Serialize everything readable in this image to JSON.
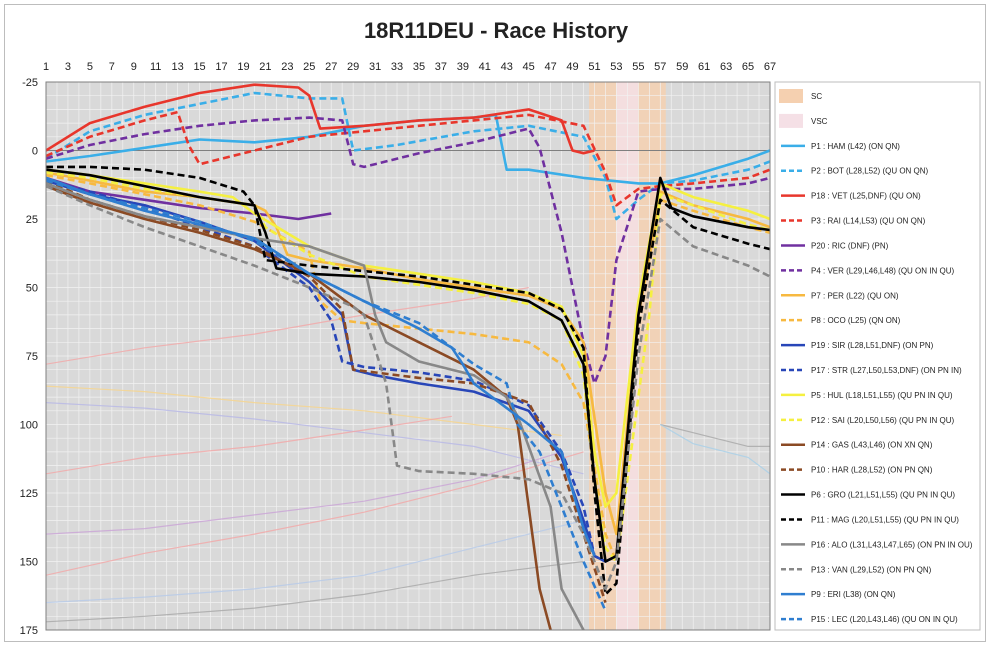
{
  "chart_data": {
    "type": "line",
    "title": "18R11DEU - Race History",
    "xlabel": "",
    "ylabel": "",
    "x_ticks": [
      1,
      3,
      5,
      7,
      9,
      11,
      13,
      15,
      17,
      19,
      21,
      23,
      25,
      27,
      29,
      31,
      33,
      35,
      37,
      39,
      41,
      43,
      45,
      47,
      49,
      51,
      53,
      55,
      57,
      59,
      61,
      63,
      65,
      67
    ],
    "xlim": [
      1,
      67
    ],
    "ylim": [
      -25,
      175
    ],
    "y_inverted": true,
    "y_ticks": [
      -25,
      0,
      25,
      50,
      75,
      100,
      125,
      150,
      175
    ],
    "grid": true,
    "background_color": "#d9d9d9",
    "grid_color": "#f2f2f2",
    "shaded_regions": [
      {
        "name": "SC",
        "x_start": 50.5,
        "x_end": 57.5,
        "color": "#f5d0b0"
      },
      {
        "name": "VSC",
        "x_start": 53,
        "x_end": 55,
        "color": "#f5e0e6"
      }
    ],
    "legend_position": "right",
    "legend": [
      {
        "label": "SC",
        "color": "#f5d0b0",
        "style": "band"
      },
      {
        "label": "VSC",
        "color": "#f5e0e6",
        "style": "band"
      },
      {
        "label": "P1 : HAM (L42) (ON QN)",
        "color": "#3aaee8",
        "style": "solid"
      },
      {
        "label": "P2 : BOT (L28,L52) (QU ON QN)",
        "color": "#3aaee8",
        "style": "dashed"
      },
      {
        "label": "P18 : VET (L25,DNF) (QU ON)",
        "color": "#e8362c",
        "style": "solid"
      },
      {
        "label": "P3 : RAI (L14,L53) (QU ON QN)",
        "color": "#e8362c",
        "style": "dashed"
      },
      {
        "label": "P20 : RIC (DNF) (PN)",
        "color": "#7030a0",
        "style": "solid"
      },
      {
        "label": "P4 : VER (L29,L46,L48) (QU ON IN QU)",
        "color": "#7030a0",
        "style": "dashed"
      },
      {
        "label": "P7 : PER (L22) (QU ON)",
        "color": "#f7b940",
        "style": "solid"
      },
      {
        "label": "P8 : OCO (L25) (QN ON)",
        "color": "#f7b940",
        "style": "dashed"
      },
      {
        "label": "P19 : SIR (L28,L51,DNF) (ON PN)",
        "color": "#2846b8",
        "style": "solid"
      },
      {
        "label": "P17 : STR (L27,L50,L53,DNF) (ON PN IN)",
        "color": "#2846b8",
        "style": "dashed"
      },
      {
        "label": "P5 : HUL (L18,L51,L55) (QU PN IN QU)",
        "color": "#f5f040",
        "style": "solid"
      },
      {
        "label": "P12 : SAI (L20,L50,L56) (QU PN IN QU)",
        "color": "#f5f040",
        "style": "dashed"
      },
      {
        "label": "P14 : GAS (L43,L46) (ON XN QN)",
        "color": "#8b4a24",
        "style": "solid"
      },
      {
        "label": "P10 : HAR (L28,L52) (ON PN QN)",
        "color": "#8b4a24",
        "style": "dashed"
      },
      {
        "label": "P6 : GRO (L21,L51,L55) (QU PN IN QU)",
        "color": "#000000",
        "style": "solid"
      },
      {
        "label": "P11 : MAG (L20,L51,L55) (QU PN IN QU)",
        "color": "#000000",
        "style": "dashed"
      },
      {
        "label": "P16 : ALO (L31,L43,L47,L65) (ON PN IN OU)",
        "color": "#888888",
        "style": "solid"
      },
      {
        "label": "P13 : VAN (L29,L52) (ON PN QN)",
        "color": "#888888",
        "style": "dashed"
      },
      {
        "label": "P9 : ERI (L38) (ON QN)",
        "color": "#2f7ed0",
        "style": "solid"
      },
      {
        "label": "P15 : LEC (L20,L43,L46) (QU ON IN QU)",
        "color": "#2f7ed0",
        "style": "dashed"
      }
    ],
    "series": [
      {
        "name": "P1 : HAM (L42) (ON QN)",
        "color": "#3aaee8",
        "dash": false,
        "x": [
          1,
          5,
          10,
          15,
          20,
          25,
          30,
          35,
          40,
          42,
          43,
          45,
          50,
          55,
          57,
          60,
          65,
          67
        ],
        "y": [
          4,
          2,
          -1,
          -4,
          -3,
          -5,
          -9,
          -11,
          -12,
          -13,
          7,
          7,
          10,
          12,
          12,
          9,
          3,
          0
        ]
      },
      {
        "name": "P2 : BOT (L28,L52) (QU ON QN)",
        "color": "#3aaee8",
        "dash": true,
        "x": [
          1,
          5,
          10,
          15,
          20,
          25,
          28,
          29,
          33,
          40,
          45,
          50,
          52,
          53,
          55,
          57,
          60,
          65,
          67
        ],
        "y": [
          3,
          -7,
          -13,
          -17,
          -21,
          -19,
          -19,
          0,
          -2,
          -7,
          -9,
          -5,
          10,
          25,
          18,
          12,
          11,
          7,
          4
        ]
      },
      {
        "name": "P18 : VET (L25,DNF) (QU ON)",
        "color": "#e8362c",
        "dash": false,
        "x": [
          1,
          5,
          10,
          15,
          20,
          24,
          25,
          26,
          30,
          35,
          40,
          45,
          48,
          49,
          50,
          51
        ],
        "y": [
          0,
          -10,
          -16,
          -21,
          -24,
          -23,
          -20,
          -8,
          -9,
          -11,
          -12,
          -15,
          -11,
          0,
          1,
          0
        ]
      },
      {
        "name": "P3 : RAI (L14,L53) (QU ON QN)",
        "color": "#e8362c",
        "dash": true,
        "x": [
          1,
          5,
          10,
          13,
          14,
          15,
          20,
          25,
          30,
          35,
          40,
          45,
          50,
          52,
          53,
          55,
          57,
          60,
          65,
          67
        ],
        "y": [
          2,
          -5,
          -11,
          -14,
          -2,
          5,
          0,
          -5,
          -7,
          -9,
          -11,
          -13,
          -9,
          8,
          20,
          14,
          13,
          12,
          10,
          7
        ]
      },
      {
        "name": "P20 : RIC (DNF) (PN)",
        "color": "#7030a0",
        "dash": false,
        "x": [
          1,
          5,
          10,
          15,
          20,
          24,
          27
        ],
        "y": [
          10,
          15,
          18,
          21,
          23,
          25,
          23
        ]
      },
      {
        "name": "P4 : VER (L29,L46,L48) (QU ON IN QU)",
        "color": "#7030a0",
        "dash": true,
        "x": [
          1,
          5,
          10,
          15,
          20,
          25,
          28,
          29,
          30,
          35,
          40,
          44,
          45,
          46,
          48,
          50,
          51,
          52,
          53,
          55,
          57,
          60,
          65,
          67
        ],
        "y": [
          3,
          -2,
          -6,
          -9,
          -11,
          -12,
          -11,
          5,
          6,
          1,
          -3,
          -7,
          -8,
          -1,
          30,
          70,
          85,
          75,
          40,
          15,
          14,
          14,
          12,
          10
        ]
      },
      {
        "name": "P7 : PER (L22) (QU ON)",
        "color": "#f7b940",
        "dash": false,
        "x": [
          1,
          5,
          10,
          15,
          20,
          21,
          22,
          23,
          25,
          30,
          35,
          40,
          45,
          48,
          50,
          52,
          53,
          55,
          57,
          60,
          65,
          67
        ],
        "y": [
          8,
          11,
          15,
          17,
          20,
          22,
          28,
          38,
          40,
          43,
          47,
          50,
          53,
          58,
          70,
          125,
          140,
          60,
          15,
          20,
          25,
          28
        ]
      },
      {
        "name": "P8 : OCO (L25) (QN ON)",
        "color": "#f7b940",
        "dash": true,
        "x": [
          1,
          5,
          10,
          15,
          20,
          25,
          26,
          28,
          30,
          35,
          40,
          45,
          48,
          50,
          52,
          53,
          55,
          57,
          60,
          65,
          67
        ],
        "y": [
          9,
          12,
          16,
          20,
          26,
          37,
          55,
          62,
          63,
          65,
          67,
          70,
          78,
          92,
          140,
          150,
          60,
          18,
          22,
          28,
          30
        ]
      },
      {
        "name": "P19 : SIR (L28,L51,DNF) (ON PN)",
        "color": "#2846b8",
        "dash": false,
        "x": [
          1,
          5,
          10,
          15,
          20,
          25,
          28,
          29,
          31,
          35,
          40,
          45,
          48,
          50,
          51,
          52,
          53
        ],
        "y": [
          11,
          16,
          20,
          26,
          33,
          48,
          60,
          80,
          82,
          85,
          88,
          95,
          112,
          135,
          148,
          150,
          148
        ]
      },
      {
        "name": "P17 : STR (L27,L50,L53,DNF) (ON PN IN)",
        "color": "#2846b8",
        "dash": true,
        "x": [
          1,
          5,
          10,
          15,
          20,
          25,
          27,
          28,
          30,
          35,
          40,
          45,
          48,
          50,
          51,
          52,
          53
        ],
        "y": [
          11,
          15,
          21,
          28,
          35,
          50,
          62,
          77,
          79,
          81,
          84,
          93,
          110,
          130,
          148,
          150,
          148
        ]
      },
      {
        "name": "P5 : HUL (L18,L51,L55) (QU PN IN QU)",
        "color": "#f5f040",
        "dash": false,
        "x": [
          1,
          5,
          10,
          15,
          18,
          20,
          25,
          30,
          35,
          40,
          45,
          48,
          50,
          51,
          52,
          53,
          55,
          57,
          60,
          65,
          67
        ],
        "y": [
          7,
          9,
          12,
          15,
          17,
          23,
          35,
          42,
          45,
          48,
          52,
          57,
          75,
          110,
          130,
          125,
          55,
          12,
          17,
          22,
          25
        ]
      },
      {
        "name": "P12 : SAI (L20,L50,L56) (QU PN IN QU)",
        "color": "#f5f040",
        "dash": true,
        "x": [
          1,
          5,
          10,
          15,
          20,
          21,
          25,
          30,
          35,
          40,
          45,
          48,
          50,
          51,
          52,
          53,
          56,
          57,
          60,
          65,
          67
        ],
        "y": [
          8,
          10,
          14,
          17,
          20,
          28,
          38,
          46,
          49,
          52,
          56,
          62,
          82,
          120,
          145,
          150,
          60,
          16,
          20,
          27,
          29
        ]
      },
      {
        "name": "P14 : GAS (L43,L46) (ON XN QN)",
        "color": "#8b4a24",
        "dash": false,
        "x": [
          1,
          5,
          10,
          15,
          20,
          25,
          30,
          35,
          40,
          43,
          44,
          46,
          47
        ],
        "y": [
          13,
          19,
          25,
          30,
          36,
          45,
          60,
          70,
          80,
          90,
          100,
          160,
          175
        ]
      },
      {
        "name": "P10 : HAR (L28,L52) (ON PN QN)",
        "color": "#8b4a24",
        "dash": true,
        "x": [
          1,
          5,
          10,
          15,
          20,
          25,
          28,
          29,
          33,
          35,
          40,
          45,
          48,
          50,
          52
        ],
        "y": [
          11,
          18,
          24,
          29,
          35,
          46,
          58,
          80,
          82,
          83,
          85,
          92,
          115,
          140,
          165
        ]
      },
      {
        "name": "P6 : GRO (L21,L51,L55) (QU PN IN QU)",
        "color": "#000000",
        "dash": false,
        "x": [
          1,
          5,
          10,
          15,
          20,
          21,
          22,
          25,
          30,
          35,
          40,
          45,
          48,
          50,
          51,
          52,
          53,
          55,
          57,
          58,
          60,
          65,
          67
        ],
        "y": [
          7,
          9,
          13,
          17,
          20,
          30,
          43,
          45,
          46,
          48,
          51,
          55,
          62,
          78,
          120,
          150,
          148,
          60,
          10,
          21,
          24,
          28,
          29
        ]
      },
      {
        "name": "P11 : MAG (L20,L51,L55) (QU PN IN QU)",
        "color": "#000000",
        "dash": true,
        "x": [
          1,
          5,
          10,
          15,
          19,
          20,
          21,
          25,
          30,
          35,
          40,
          45,
          48,
          50,
          51,
          52,
          53,
          55,
          57,
          60,
          65,
          67
        ],
        "y": [
          6,
          6,
          7,
          10,
          15,
          20,
          40,
          42,
          44,
          46,
          49,
          52,
          58,
          72,
          125,
          162,
          158,
          65,
          18,
          28,
          34,
          36
        ]
      },
      {
        "name": "P16 : ALO (L31,L43,L47,L65) (ON PN IN OU)",
        "color": "#888888",
        "dash": false,
        "x": [
          1,
          5,
          10,
          15,
          20,
          25,
          30,
          31,
          32,
          35,
          40,
          43,
          44,
          47,
          48,
          50
        ],
        "y": [
          12,
          18,
          24,
          28,
          32,
          35,
          42,
          60,
          70,
          77,
          82,
          90,
          97,
          130,
          160,
          175
        ]
      },
      {
        "name": "P13 : VAN (L29,L52) (ON PN QN)",
        "color": "#888888",
        "dash": true,
        "x": [
          1,
          5,
          10,
          15,
          20,
          25,
          29,
          30,
          32,
          33,
          35,
          40,
          45,
          48,
          50,
          52,
          53,
          55,
          57,
          60,
          65,
          67
        ],
        "y": [
          13,
          20,
          28,
          35,
          42,
          50,
          57,
          60,
          85,
          115,
          117,
          118,
          120,
          125,
          140,
          160,
          150,
          75,
          25,
          35,
          42,
          46
        ]
      },
      {
        "name": "P9 : ERI (L38) (ON QN)",
        "color": "#2f7ed0",
        "dash": false,
        "x": [
          1,
          5,
          10,
          15,
          20,
          25,
          30,
          35,
          38,
          39,
          40,
          45,
          48,
          50,
          51
        ],
        "y": [
          10,
          16,
          22,
          27,
          32,
          45,
          55,
          65,
          72,
          78,
          85,
          100,
          110,
          138,
          148
        ]
      },
      {
        "name": "P15 : LEC (L20,L43,L46) (QU ON IN QU)",
        "color": "#2f7ed0",
        "dash": true,
        "x": [
          1,
          5,
          10,
          15,
          20,
          25,
          30,
          35,
          40,
          43,
          44,
          46,
          48,
          50,
          52
        ],
        "y": [
          11,
          16,
          21,
          26,
          33,
          45,
          55,
          63,
          78,
          85,
          100,
          110,
          130,
          150,
          168
        ]
      }
    ],
    "background_series": [
      {
        "color": "#f2a6a6",
        "x": [
          1,
          10,
          20,
          30,
          40,
          45
        ],
        "y": [
          78,
          72,
          67,
          60,
          54,
          50
        ]
      },
      {
        "color": "#f2a6a6",
        "x": [
          1,
          10,
          20,
          30,
          40,
          50
        ],
        "y": [
          155,
          147,
          140,
          132,
          122,
          110
        ]
      },
      {
        "color": "#f7d58a",
        "x": [
          1,
          10,
          20,
          30,
          40,
          48
        ],
        "y": [
          86,
          88,
          92,
          95,
          100,
          104
        ]
      },
      {
        "color": "#b7b7e6",
        "x": [
          1,
          10,
          20,
          30,
          40,
          50
        ],
        "y": [
          92,
          94,
          98,
          103,
          108,
          118
        ]
      },
      {
        "color": "#b5c9e8",
        "x": [
          1,
          10,
          20,
          30,
          40,
          50
        ],
        "y": [
          165,
          163,
          160,
          155,
          145,
          135
        ]
      },
      {
        "color": "#c9a3d6",
        "x": [
          1,
          10,
          20,
          30,
          40,
          48
        ],
        "y": [
          140,
          138,
          133,
          128,
          120,
          110
        ]
      },
      {
        "color": "#a6a6a6",
        "x": [
          57,
          60,
          65,
          67
        ],
        "y": [
          100,
          103,
          108,
          108
        ]
      },
      {
        "color": "#a6a6a6",
        "x": [
          1,
          10,
          20,
          30,
          40,
          50
        ],
        "y": [
          172,
          170,
          167,
          162,
          155,
          150
        ]
      },
      {
        "color": "#a6cfe8",
        "x": [
          57,
          60,
          65,
          67
        ],
        "y": [
          100,
          107,
          112,
          118
        ]
      },
      {
        "color": "#f2a6a6",
        "x": [
          1,
          10,
          20,
          30,
          38
        ],
        "y": [
          118,
          112,
          108,
          102,
          97
        ]
      }
    ]
  }
}
